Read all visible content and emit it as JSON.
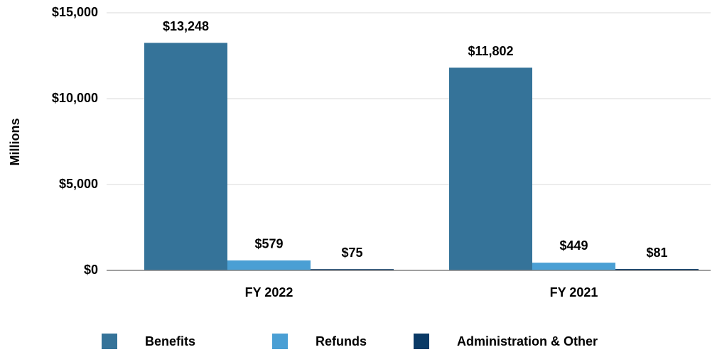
{
  "chart_data": {
    "type": "bar",
    "y_label": "Millions",
    "categories": [
      "FY 2022",
      "FY 2021"
    ],
    "series": [
      {
        "name": "Benefits",
        "color": "#357399",
        "values": [
          13248,
          11802
        ],
        "value_labels": [
          "$13,248",
          "$11,802"
        ]
      },
      {
        "name": "Refunds",
        "color": "#4a9fd4",
        "values": [
          579,
          449
        ],
        "value_labels": [
          "$579",
          "$449"
        ]
      },
      {
        "name": "Administration & Other",
        "color": "#0a3a66",
        "values": [
          75,
          81
        ],
        "value_labels": [
          "$75",
          "$81"
        ]
      }
    ],
    "ylim": [
      0,
      15000
    ],
    "yticks": [
      {
        "value": 0,
        "label": "$0"
      },
      {
        "value": 5000,
        "label": "$5,000"
      },
      {
        "value": 10000,
        "label": "$10,000"
      },
      {
        "value": 15000,
        "label": "$15,000"
      }
    ],
    "grid": true,
    "legend": "bottom"
  }
}
